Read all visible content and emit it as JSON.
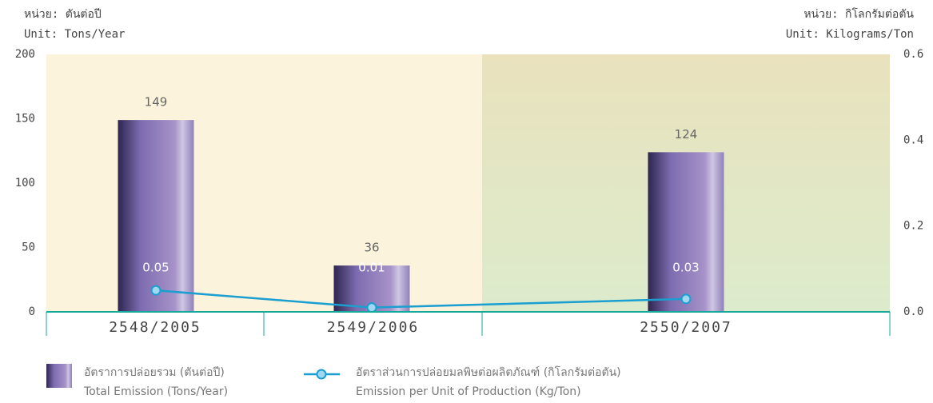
{
  "chart_data": {
    "type": "bar-line",
    "unit_left_th": "หน่วย: ตันต่อปี",
    "unit_left": "Unit: Tons/Year",
    "unit_right_th": "หน่วย: กิโลกรัมต่อตัน",
    "unit_right": "Unit: Kilograms/Ton",
    "categories": [
      "2548/2005",
      "2549/2006",
      "2550/2007"
    ],
    "series": [
      {
        "name": "Total Emission (Tons/Year)",
        "name_th": "อัตราการปล่อยรวม (ตันต่อปี)",
        "type": "bar",
        "color": "#7d6cb0",
        "values": [
          149,
          36,
          124
        ]
      },
      {
        "name": "Emission per Unit of Production (Kg/Ton)",
        "name_th": "อัตราส่วนการปล่อยมลพิษต่อผลิตภัณฑ์ (กิโลกรัมต่อตัน)",
        "type": "line",
        "axis": "y2",
        "color": "#1a9fd0",
        "values": [
          0.05,
          0.01,
          0.03
        ]
      }
    ],
    "ylim": [
      0,
      200
    ],
    "yticks": [
      0,
      50,
      100,
      150,
      200
    ],
    "y2lim": [
      0,
      0.6
    ],
    "y2ticks": [
      {
        "value": 0,
        "label": "0.0"
      },
      0.2,
      0.4,
      0.6
    ]
  }
}
